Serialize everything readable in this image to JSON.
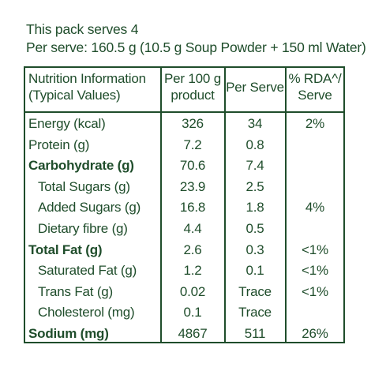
{
  "header": {
    "line1": "This pack serves 4",
    "line2": "Per serve: 160.5 g (10.5 g Soup Powder + 150 ml Water)"
  },
  "table": {
    "columns": [
      [
        "Nutrition Information",
        "(Typical Values)"
      ],
      [
        "Per 100 g",
        "product"
      ],
      [
        "Per Serve"
      ],
      [
        "% RDA^/",
        "Serve"
      ]
    ],
    "rows": [
      {
        "label": "Energy (kcal)",
        "per100": "326",
        "perServe": "34",
        "rda": "2%",
        "bold": false,
        "indent": false
      },
      {
        "label": "Protein (g)",
        "per100": "7.2",
        "perServe": "0.8",
        "rda": "",
        "bold": false,
        "indent": false
      },
      {
        "label": "Carbohydrate (g)",
        "per100": "70.6",
        "perServe": "7.4",
        "rda": "",
        "bold": true,
        "indent": false
      },
      {
        "label": "Total Sugars (g)",
        "per100": "23.9",
        "perServe": "2.5",
        "rda": "",
        "bold": false,
        "indent": true
      },
      {
        "label": "Added Sugars (g)",
        "per100": "16.8",
        "perServe": "1.8",
        "rda": "4%",
        "bold": false,
        "indent": true
      },
      {
        "label": "Dietary fibre (g)",
        "per100": "4.4",
        "perServe": "0.5",
        "rda": "",
        "bold": false,
        "indent": true
      },
      {
        "label": "Total Fat (g)",
        "per100": "2.6",
        "perServe": "0.3",
        "rda": "<1%",
        "bold": true,
        "indent": false
      },
      {
        "label": "Saturated Fat (g)",
        "per100": "1.2",
        "perServe": "0.1",
        "rda": "<1%",
        "bold": false,
        "indent": true
      },
      {
        "label": "Trans Fat (g)",
        "per100": "0.02",
        "perServe": "Trace",
        "rda": "<1%",
        "bold": false,
        "indent": true
      },
      {
        "label": "Cholesterol (mg)",
        "per100": "0.1",
        "perServe": "Trace",
        "rda": "",
        "bold": false,
        "indent": true
      },
      {
        "label": "Sodium (mg)",
        "per100": "4867",
        "perServe": "511",
        "rda": "26%",
        "bold": true,
        "indent": false
      }
    ]
  },
  "colors": {
    "text": "#1f4d2b",
    "border": "#1f4d2b",
    "background": "#ffffff"
  }
}
